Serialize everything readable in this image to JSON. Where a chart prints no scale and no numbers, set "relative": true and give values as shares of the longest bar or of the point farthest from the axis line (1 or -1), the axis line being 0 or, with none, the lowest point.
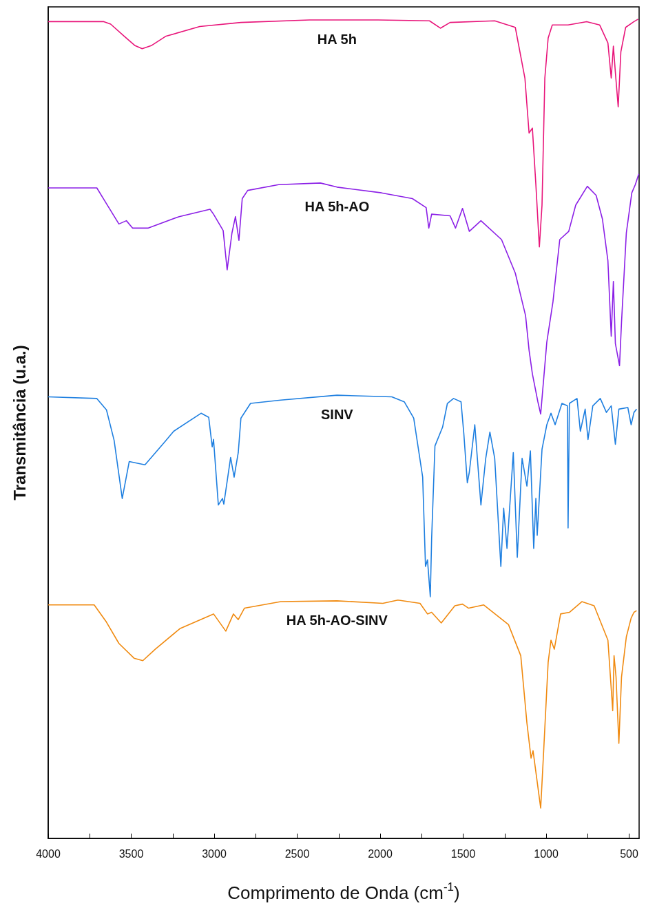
{
  "chart_data": {
    "type": "line",
    "xlabel": "Comprimento de Onda (cm$^{-1}$)",
    "ylabel": "Transmitância (u.a.)",
    "relative": true,
    "xlim": [
      4000,
      440
    ],
    "xticks": [
      4000,
      {
        "value": 3750,
        "label": null
      },
      3500,
      {
        "value": 3250,
        "label": null
      },
      3000,
      {
        "value": 2750,
        "label": null
      },
      2500,
      {
        "value": 2250,
        "label": null
      },
      2000,
      {
        "value": 1750,
        "label": null
      },
      1500,
      {
        "value": 1250,
        "label": null
      },
      1000,
      {
        "value": 750,
        "label": null
      },
      500
    ],
    "grid": false,
    "legend": false,
    "marker": "none",
    "line_style": "solid",
    "series": [
      {
        "name": "HA 5h",
        "color": "#e8157a",
        "x": [
          4000,
          3665,
          3624,
          3541,
          3479,
          3434,
          3376,
          3293,
          3087,
          2839,
          2426,
          2260,
          2012,
          1703,
          1637,
          1579,
          1310,
          1186,
          1128,
          1103,
          1083,
          1062,
          1041,
          1025,
          1008,
          988,
          963,
          868,
          756,
          678,
          628,
          608,
          595,
          583,
          566,
          550,
          521,
          471,
          446
        ],
        "values": [
          0.997,
          0.997,
          0.994,
          0.979,
          0.968,
          0.964,
          0.968,
          0.979,
          0.991,
          0.996,
          0.999,
          0.999,
          0.999,
          0.998,
          0.989,
          0.996,
          0.998,
          0.99,
          0.928,
          0.861,
          0.867,
          0.798,
          0.722,
          0.773,
          0.928,
          0.977,
          0.993,
          0.993,
          0.997,
          0.993,
          0.971,
          0.928,
          0.967,
          0.935,
          0.893,
          0.96,
          0.99,
          0.997,
          1.0
        ]
      },
      {
        "name": "HA 5h-AO",
        "color": "#8b1fe6",
        "x": [
          4000,
          3707,
          3665,
          3574,
          3529,
          3492,
          3397,
          3211,
          3025,
          3004,
          2946,
          2922,
          2893,
          2872,
          2851,
          2831,
          2798,
          2612,
          2360,
          2260,
          1992,
          1806,
          1723,
          1707,
          1690,
          1579,
          1546,
          1504,
          1463,
          1393,
          1269,
          1186,
          1124,
          1103,
          1083,
          1050,
          1033,
          996,
          959,
          918,
          864,
          822,
          752,
          699,
          661,
          628,
          608,
          595,
          583,
          558,
          546,
          517,
          484,
          463,
          442
        ],
        "values": [
          0.794,
          0.794,
          0.78,
          0.75,
          0.754,
          0.745,
          0.745,
          0.759,
          0.768,
          0.762,
          0.742,
          0.694,
          0.739,
          0.759,
          0.73,
          0.781,
          0.791,
          0.798,
          0.8,
          0.795,
          0.788,
          0.781,
          0.77,
          0.745,
          0.762,
          0.76,
          0.745,
          0.769,
          0.741,
          0.754,
          0.731,
          0.69,
          0.638,
          0.596,
          0.567,
          0.533,
          0.518,
          0.606,
          0.655,
          0.731,
          0.741,
          0.773,
          0.796,
          0.785,
          0.756,
          0.705,
          0.613,
          0.68,
          0.604,
          0.577,
          0.63,
          0.739,
          0.788,
          0.798,
          0.811
        ]
      },
      {
        "name": "SINV",
        "color": "#1e7fe0",
        "x": [
          4000,
          3707,
          3649,
          3603,
          3554,
          3512,
          3417,
          3298,
          3244,
          3079,
          3033,
          3012,
          3004,
          2975,
          2950,
          2942,
          2901,
          2880,
          2855,
          2839,
          2781,
          2599,
          2260,
          1930,
          1855,
          1798,
          1744,
          1727,
          1715,
          1698,
          1690,
          1670,
          1624,
          1595,
          1558,
          1513,
          1496,
          1475,
          1463,
          1430,
          1393,
          1364,
          1339,
          1310,
          1273,
          1256,
          1236,
          1198,
          1174,
          1145,
          1116,
          1095,
          1075,
          1062,
          1054,
          1025,
          996,
          971,
          946,
          905,
          872,
          868,
          860,
          814,
          794,
          765,
          748,
          719,
          674,
          637,
          608,
          583,
          562,
          508,
          488,
          471,
          455
        ],
        "values": [
          0.539,
          0.537,
          0.523,
          0.486,
          0.415,
          0.46,
          0.456,
          0.484,
          0.497,
          0.519,
          0.514,
          0.478,
          0.487,
          0.407,
          0.415,
          0.408,
          0.465,
          0.441,
          0.471,
          0.513,
          0.531,
          0.535,
          0.541,
          0.539,
          0.533,
          0.513,
          0.441,
          0.332,
          0.34,
          0.295,
          0.366,
          0.479,
          0.502,
          0.531,
          0.537,
          0.533,
          0.494,
          0.434,
          0.447,
          0.505,
          0.407,
          0.464,
          0.496,
          0.464,
          0.332,
          0.403,
          0.354,
          0.471,
          0.343,
          0.464,
          0.43,
          0.473,
          0.354,
          0.415,
          0.37,
          0.475,
          0.505,
          0.519,
          0.505,
          0.531,
          0.528,
          0.379,
          0.531,
          0.537,
          0.497,
          0.524,
          0.487,
          0.528,
          0.537,
          0.52,
          0.528,
          0.481,
          0.524,
          0.526,
          0.505,
          0.52,
          0.524
        ]
      },
      {
        "name": "HA 5h-AO-SINV",
        "color": "#f08a10",
        "x": [
          4000,
          3723,
          3649,
          3574,
          3483,
          3430,
          3355,
          3207,
          3004,
          2930,
          2884,
          2855,
          2818,
          2599,
          2260,
          1984,
          1893,
          1760,
          1715,
          1690,
          1632,
          1550,
          1504,
          1467,
          1376,
          1227,
          1153,
          1116,
          1091,
          1079,
          1033,
          1017,
          988,
          971,
          951,
          913,
          860,
          785,
          711,
          628,
          599,
          591,
          579,
          562,
          546,
          517,
          488,
          471,
          455
        ],
        "values": [
          0.285,
          0.285,
          0.264,
          0.238,
          0.22,
          0.217,
          0.231,
          0.256,
          0.274,
          0.253,
          0.274,
          0.267,
          0.281,
          0.289,
          0.29,
          0.287,
          0.291,
          0.287,
          0.274,
          0.276,
          0.263,
          0.284,
          0.286,
          0.281,
          0.285,
          0.261,
          0.223,
          0.141,
          0.098,
          0.107,
          0.037,
          0.099,
          0.215,
          0.242,
          0.231,
          0.274,
          0.276,
          0.289,
          0.284,
          0.242,
          0.156,
          0.223,
          0.197,
          0.116,
          0.197,
          0.246,
          0.269,
          0.276,
          0.278
        ]
      }
    ]
  }
}
